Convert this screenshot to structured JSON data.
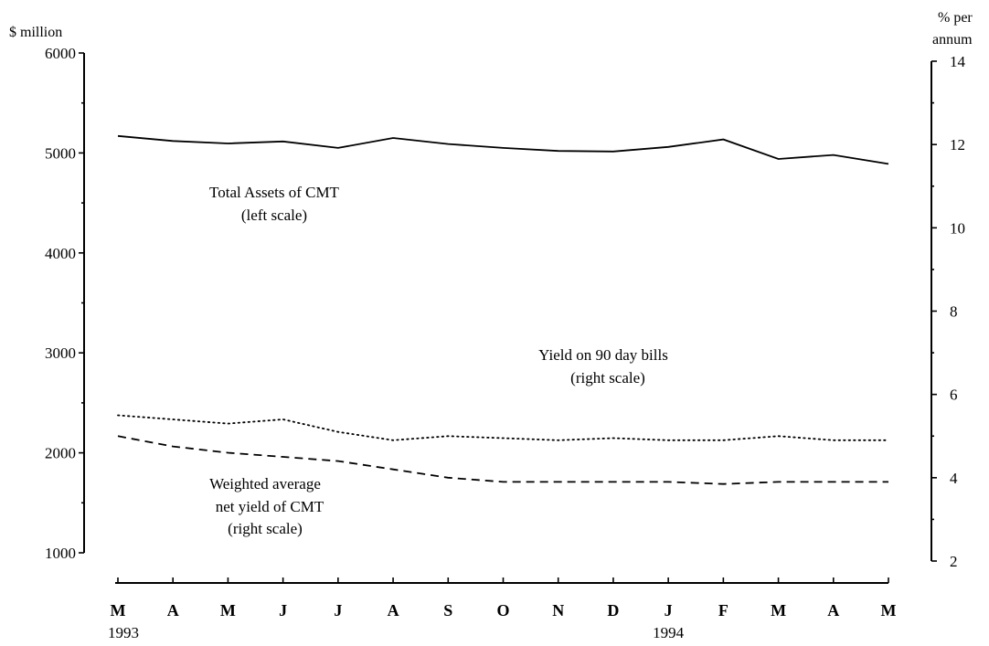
{
  "chart_data": {
    "type": "line",
    "left_axis": {
      "unit_label": "$ million",
      "range": [
        1000,
        6000
      ],
      "ticks": [
        1000,
        2000,
        3000,
        4000,
        5000,
        6000
      ]
    },
    "right_axis": {
      "unit_label_line1": "% per",
      "unit_label_line2": "annum",
      "range": [
        2,
        14
      ],
      "ticks": [
        2,
        4,
        6,
        8,
        10,
        12,
        14
      ]
    },
    "x_axis": {
      "months": [
        "M",
        "A",
        "M",
        "J",
        "J",
        "A",
        "S",
        "O",
        "N",
        "D",
        "J",
        "F",
        "M",
        "A",
        "M"
      ],
      "year_labels": [
        {
          "text": "1993",
          "index": 0
        },
        {
          "text": "1994",
          "index": 10
        }
      ]
    },
    "grid": false,
    "legend": "none",
    "series": [
      {
        "id": "total_assets",
        "axis": "left",
        "style": "solid",
        "values": [
          5170,
          5120,
          5095,
          5115,
          5050,
          5150,
          5090,
          5050,
          5020,
          5015,
          5060,
          5135,
          4940,
          4980,
          4890
        ]
      },
      {
        "id": "bills_yield",
        "axis": "right",
        "style": "dotted",
        "values": [
          5.5,
          5.4,
          5.3,
          5.4,
          5.1,
          4.9,
          5.0,
          4.95,
          4.9,
          4.95,
          4.9,
          4.9,
          5.0,
          4.9,
          4.9
        ]
      },
      {
        "id": "cmt_yield",
        "axis": "right",
        "style": "dashed",
        "values": [
          5.0,
          4.75,
          4.6,
          4.5,
          4.4,
          4.2,
          4.0,
          3.9,
          3.9,
          3.9,
          3.9,
          3.85,
          3.9,
          3.9,
          3.9
        ]
      }
    ],
    "annotations": [
      {
        "id": "assets",
        "line1": "Total Assets of CMT",
        "line2": "(left scale)"
      },
      {
        "id": "bills",
        "line1": "Yield on 90 day bills",
        "line2": "(right scale)"
      },
      {
        "id": "cmt",
        "line1": "Weighted average",
        "line2": "net yield of CMT",
        "line3": "(right scale)"
      }
    ]
  }
}
